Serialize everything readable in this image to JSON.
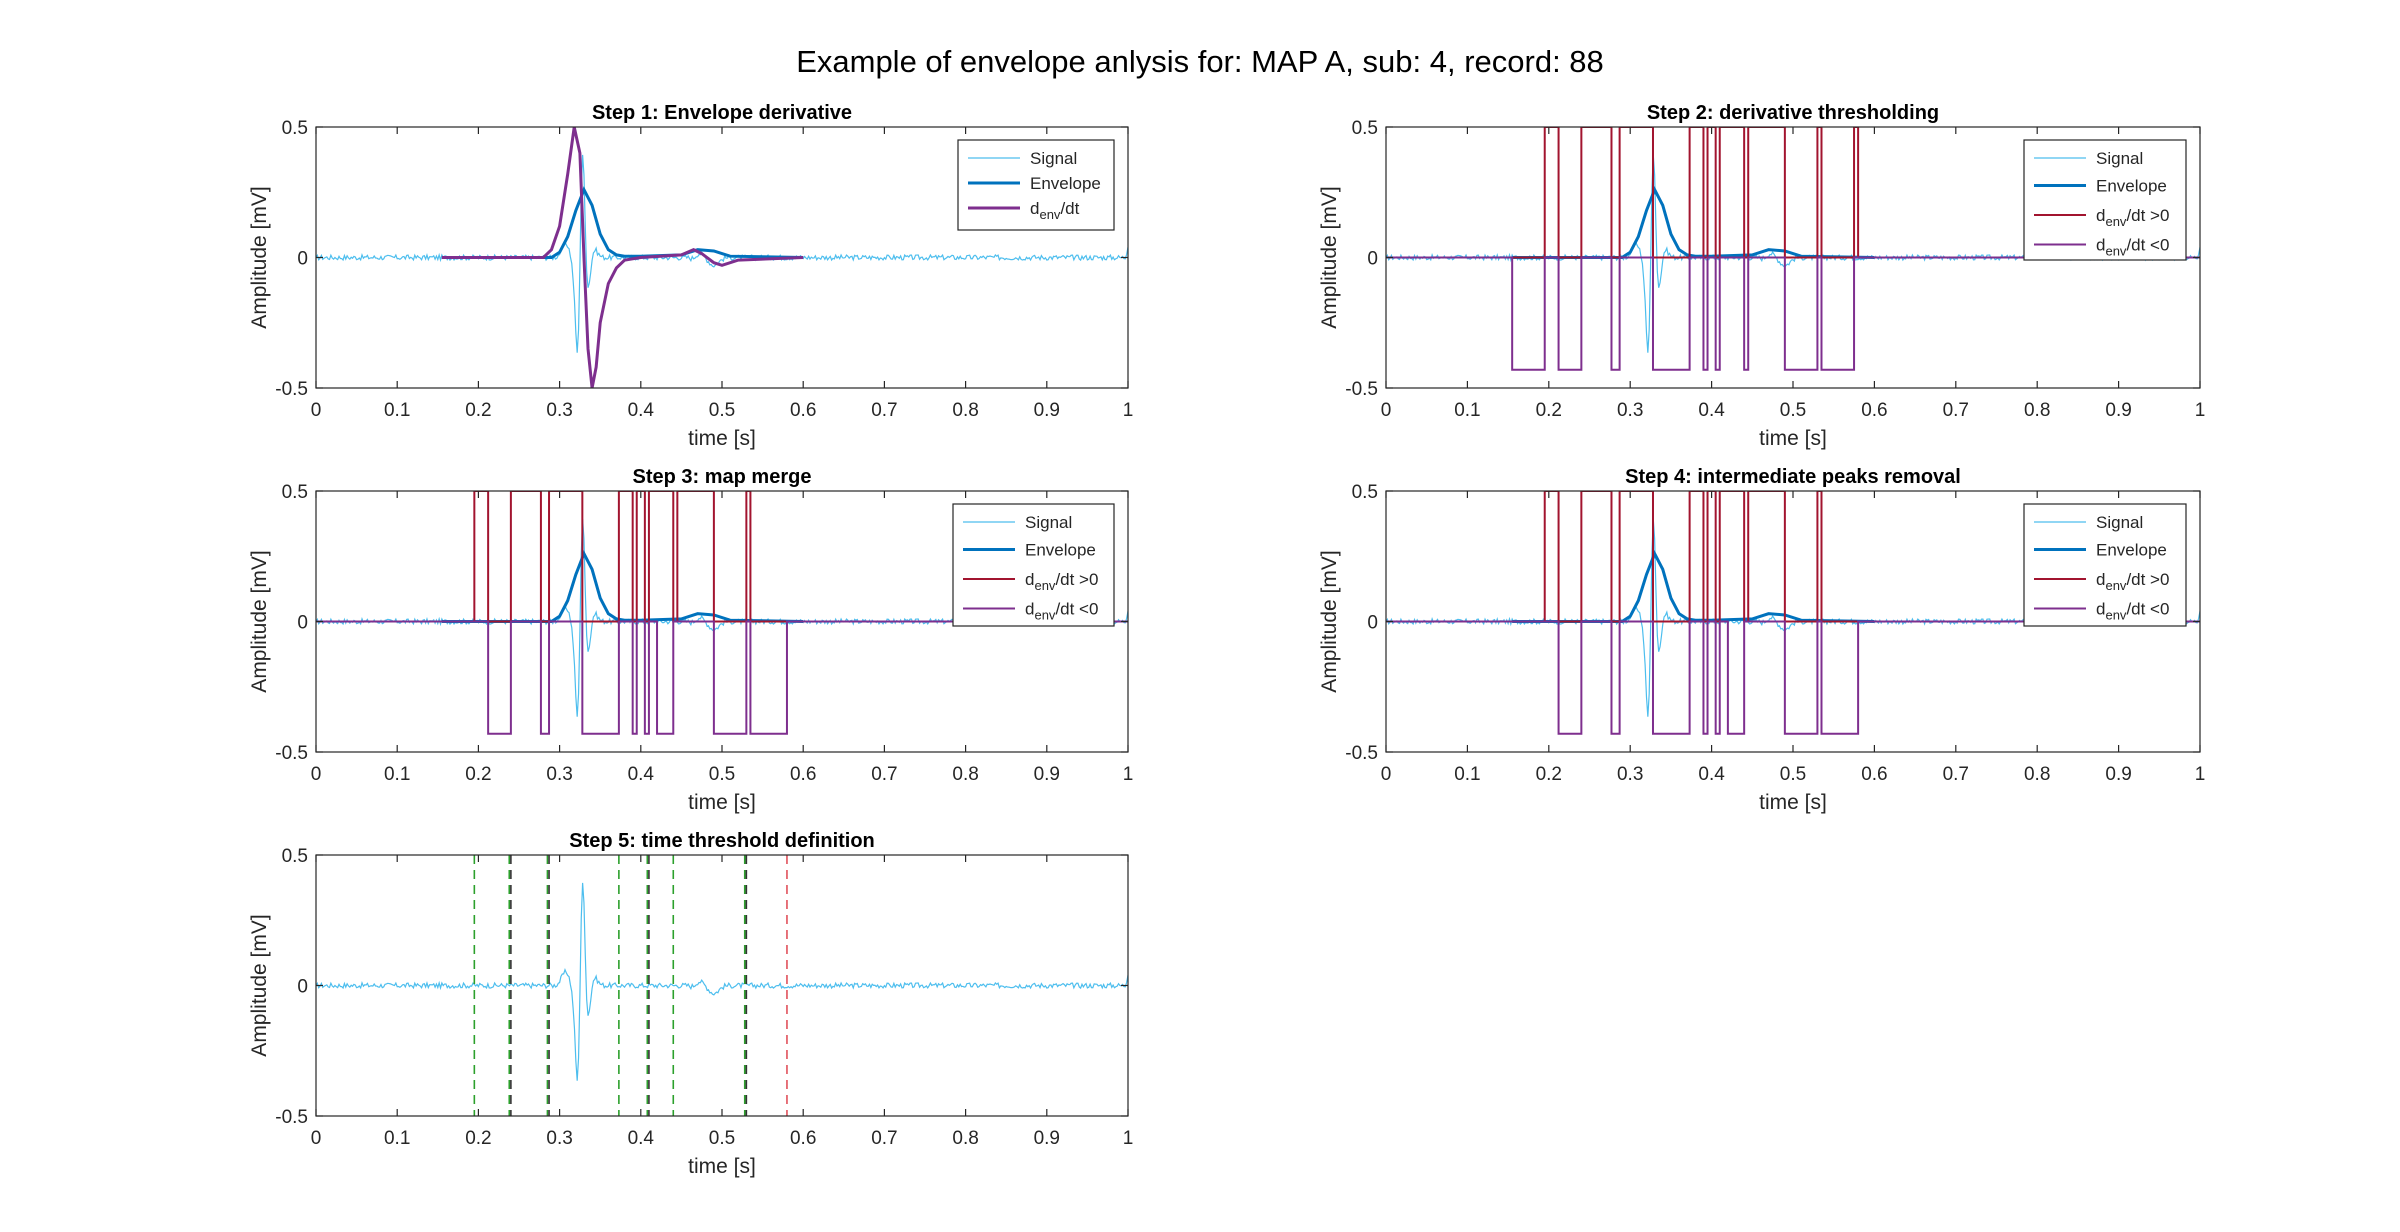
{
  "figure": {
    "title": "Example of envelope anlysis for: MAP A, sub: 4, record: 88"
  },
  "colors": {
    "signal": "#4DBEEE",
    "envelope": "#0072BD",
    "derivative": "#7E2F8E",
    "pos": "#A2142F",
    "neg": "#7E2F8E",
    "green_marker": "#2CA02C",
    "dark_marker": "#333333",
    "red_marker": "#E0505A"
  },
  "chart_data": [
    {
      "type": "line",
      "title": "Step 1: Envelope derivative",
      "xlabel": "time [s]",
      "ylabel": "Amplitude [mV]",
      "xlim": [
        0,
        1
      ],
      "ylim": [
        -0.5,
        0.5
      ],
      "xticks": [
        "0",
        "0.1",
        "0.2",
        "0.3",
        "0.4",
        "0.5",
        "0.6",
        "0.7",
        "0.8",
        "0.9",
        "1"
      ],
      "yticks": [
        "-0.5",
        "0",
        "0.5"
      ],
      "legend_position": "top-right",
      "series": [
        {
          "name": "Signal",
          "color": "#4DBEEE",
          "width": 1.2,
          "style": "signal"
        },
        {
          "name": "Envelope",
          "color": "#0072BD",
          "width": 3,
          "style": "envelope",
          "x": [
            0.155,
            0.29,
            0.3,
            0.31,
            0.32,
            0.33,
            0.34,
            0.35,
            0.36,
            0.37,
            0.38,
            0.4,
            0.45,
            0.47,
            0.49,
            0.51,
            0.6
          ],
          "y": [
            0.0,
            0.0,
            0.02,
            0.08,
            0.18,
            0.26,
            0.2,
            0.09,
            0.03,
            0.01,
            0.005,
            0.005,
            0.01,
            0.03,
            0.025,
            0.005,
            0.0
          ]
        },
        {
          "name": "d_env/dt",
          "color": "#7E2F8E",
          "width": 3,
          "style": "derivative",
          "x": [
            0.155,
            0.28,
            0.29,
            0.3,
            0.31,
            0.318,
            0.325,
            0.33,
            0.335,
            0.34,
            0.345,
            0.35,
            0.36,
            0.37,
            0.38,
            0.4,
            0.45,
            0.465,
            0.475,
            0.49,
            0.5,
            0.52,
            0.6
          ],
          "y": [
            0.0,
            0.0,
            0.03,
            0.12,
            0.32,
            0.5,
            0.4,
            0.0,
            -0.35,
            -0.5,
            -0.42,
            -0.25,
            -0.1,
            -0.04,
            -0.01,
            0.0,
            0.01,
            0.03,
            0.015,
            -0.02,
            -0.03,
            -0.01,
            0.0
          ]
        }
      ]
    },
    {
      "type": "line",
      "title": "Step 2: derivative thresholding",
      "xlabel": "time [s]",
      "ylabel": "Amplitude [mV]",
      "xlim": [
        0,
        1
      ],
      "ylim": [
        -0.5,
        0.5
      ],
      "xticks": [
        "0",
        "0.1",
        "0.2",
        "0.3",
        "0.4",
        "0.5",
        "0.6",
        "0.7",
        "0.8",
        "0.9",
        "1"
      ],
      "yticks": [
        "-0.5",
        "0",
        "0.5"
      ],
      "legend_position": "top-right",
      "series": [
        {
          "name": "Signal",
          "color": "#4DBEEE",
          "width": 1.2,
          "style": "signal"
        },
        {
          "name": "Envelope",
          "color": "#0072BD",
          "width": 3,
          "style": "envelope",
          "x": [
            0.155,
            0.29,
            0.3,
            0.31,
            0.32,
            0.33,
            0.34,
            0.35,
            0.36,
            0.37,
            0.38,
            0.4,
            0.45,
            0.47,
            0.49,
            0.51,
            0.6
          ],
          "y": [
            0.0,
            0.0,
            0.02,
            0.08,
            0.18,
            0.26,
            0.2,
            0.09,
            0.03,
            0.01,
            0.005,
            0.005,
            0.01,
            0.03,
            0.025,
            0.005,
            0.0
          ]
        },
        {
          "name": "d_env/dt >0",
          "color": "#A2142F",
          "width": 2,
          "style": "pulses",
          "level": 0.5,
          "intervals": [
            [
              0.195,
              0.212
            ],
            [
              0.24,
              0.277
            ],
            [
              0.287,
              0.328
            ],
            [
              0.373,
              0.39
            ],
            [
              0.395,
              0.405
            ],
            [
              0.41,
              0.44
            ],
            [
              0.445,
              0.49
            ],
            [
              0.53,
              0.535
            ],
            [
              0.575,
              0.58
            ]
          ]
        },
        {
          "name": "d_env/dt <0",
          "color": "#7E2F8E",
          "width": 2,
          "style": "pulses",
          "level": -0.43,
          "intervals": [
            [
              0.155,
              0.195
            ],
            [
              0.212,
              0.24
            ],
            [
              0.277,
              0.287
            ],
            [
              0.328,
              0.373
            ],
            [
              0.39,
              0.395
            ],
            [
              0.405,
              0.41
            ],
            [
              0.44,
              0.445
            ],
            [
              0.49,
              0.53
            ],
            [
              0.535,
              0.575
            ]
          ]
        }
      ]
    },
    {
      "type": "line",
      "title": "Step 3: map merge",
      "xlabel": "time [s]",
      "ylabel": "Amplitude [mV]",
      "xlim": [
        0,
        1
      ],
      "ylim": [
        -0.5,
        0.5
      ],
      "xticks": [
        "0",
        "0.1",
        "0.2",
        "0.3",
        "0.4",
        "0.5",
        "0.6",
        "0.7",
        "0.8",
        "0.9",
        "1"
      ],
      "yticks": [
        "-0.5",
        "0",
        "0.5"
      ],
      "legend_position": "top-right",
      "series": [
        {
          "name": "Signal",
          "color": "#4DBEEE",
          "width": 1.2,
          "style": "signal"
        },
        {
          "name": "Envelope",
          "color": "#0072BD",
          "width": 3,
          "style": "envelope",
          "x": [
            0.155,
            0.29,
            0.3,
            0.31,
            0.32,
            0.33,
            0.34,
            0.35,
            0.36,
            0.37,
            0.38,
            0.4,
            0.45,
            0.47,
            0.49,
            0.51,
            0.6
          ],
          "y": [
            0.0,
            0.0,
            0.02,
            0.08,
            0.18,
            0.26,
            0.2,
            0.09,
            0.03,
            0.01,
            0.005,
            0.005,
            0.01,
            0.03,
            0.025,
            0.005,
            0.0
          ]
        },
        {
          "name": "d_env/dt >0",
          "color": "#A2142F",
          "width": 2,
          "style": "pulses",
          "level": 0.5,
          "intervals": [
            [
              0.195,
              0.212
            ],
            [
              0.24,
              0.277
            ],
            [
              0.287,
              0.328
            ],
            [
              0.373,
              0.39
            ],
            [
              0.395,
              0.405
            ],
            [
              0.41,
              0.44
            ],
            [
              0.445,
              0.49
            ],
            [
              0.53,
              0.535
            ]
          ]
        },
        {
          "name": "d_env/dt <0",
          "color": "#7E2F8E",
          "width": 2,
          "style": "pulses",
          "level": -0.43,
          "intervals": [
            [
              0.212,
              0.24
            ],
            [
              0.277,
              0.287
            ],
            [
              0.328,
              0.373
            ],
            [
              0.39,
              0.395
            ],
            [
              0.405,
              0.41
            ],
            [
              0.42,
              0.44
            ],
            [
              0.49,
              0.53
            ],
            [
              0.535,
              0.58
            ]
          ]
        }
      ]
    },
    {
      "type": "line",
      "title": "Step 4: intermediate peaks removal",
      "xlabel": "time [s]",
      "ylabel": "Amplitude [mV]",
      "xlim": [
        0,
        1
      ],
      "ylim": [
        -0.5,
        0.5
      ],
      "xticks": [
        "0",
        "0.1",
        "0.2",
        "0.3",
        "0.4",
        "0.5",
        "0.6",
        "0.7",
        "0.8",
        "0.9",
        "1"
      ],
      "yticks": [
        "-0.5",
        "0",
        "0.5"
      ],
      "legend_position": "top-right",
      "series": [
        {
          "name": "Signal",
          "color": "#4DBEEE",
          "width": 1.2,
          "style": "signal"
        },
        {
          "name": "Envelope",
          "color": "#0072BD",
          "width": 3,
          "style": "envelope",
          "x": [
            0.155,
            0.29,
            0.3,
            0.31,
            0.32,
            0.33,
            0.34,
            0.35,
            0.36,
            0.37,
            0.38,
            0.4,
            0.45,
            0.47,
            0.49,
            0.51,
            0.6
          ],
          "y": [
            0.0,
            0.0,
            0.02,
            0.08,
            0.18,
            0.26,
            0.2,
            0.09,
            0.03,
            0.01,
            0.005,
            0.005,
            0.01,
            0.03,
            0.025,
            0.005,
            0.0
          ]
        },
        {
          "name": "d_env/dt >0",
          "color": "#A2142F",
          "width": 2,
          "style": "pulses",
          "level": 0.5,
          "intervals": [
            [
              0.195,
              0.212
            ],
            [
              0.24,
              0.277
            ],
            [
              0.287,
              0.328
            ],
            [
              0.373,
              0.39
            ],
            [
              0.395,
              0.405
            ],
            [
              0.41,
              0.44
            ],
            [
              0.445,
              0.49
            ],
            [
              0.53,
              0.535
            ]
          ]
        },
        {
          "name": "d_env/dt <0",
          "color": "#7E2F8E",
          "width": 2,
          "style": "pulses",
          "level": -0.43,
          "intervals": [
            [
              0.212,
              0.24
            ],
            [
              0.277,
              0.287
            ],
            [
              0.328,
              0.373
            ],
            [
              0.39,
              0.395
            ],
            [
              0.405,
              0.41
            ],
            [
              0.42,
              0.44
            ],
            [
              0.49,
              0.53
            ],
            [
              0.535,
              0.58
            ]
          ]
        }
      ]
    },
    {
      "type": "line",
      "title": "Step 5: time threshold definition",
      "xlabel": "time [s]",
      "ylabel": "Amplitude [mV]",
      "xlim": [
        0,
        1
      ],
      "ylim": [
        -0.5,
        0.5
      ],
      "xticks": [
        "0",
        "0.1",
        "0.2",
        "0.3",
        "0.4",
        "0.5",
        "0.6",
        "0.7",
        "0.8",
        "0.9",
        "1"
      ],
      "yticks": [
        "-0.5",
        "0",
        "0.5"
      ],
      "series": [
        {
          "name": "",
          "color": "#4DBEEE",
          "width": 1.2,
          "style": "signal"
        }
      ],
      "vlines": [
        {
          "x": 0.195,
          "color": "#2CA02C"
        },
        {
          "x": 0.238,
          "color": "#2CA02C"
        },
        {
          "x": 0.24,
          "color": "#333333"
        },
        {
          "x": 0.285,
          "color": "#2CA02C"
        },
        {
          "x": 0.287,
          "color": "#333333"
        },
        {
          "x": 0.373,
          "color": "#2CA02C"
        },
        {
          "x": 0.408,
          "color": "#2CA02C"
        },
        {
          "x": 0.41,
          "color": "#333333"
        },
        {
          "x": 0.44,
          "color": "#2CA02C"
        },
        {
          "x": 0.528,
          "color": "#2CA02C"
        },
        {
          "x": 0.53,
          "color": "#333333"
        },
        {
          "x": 0.58,
          "color": "#E0505A"
        }
      ]
    }
  ]
}
